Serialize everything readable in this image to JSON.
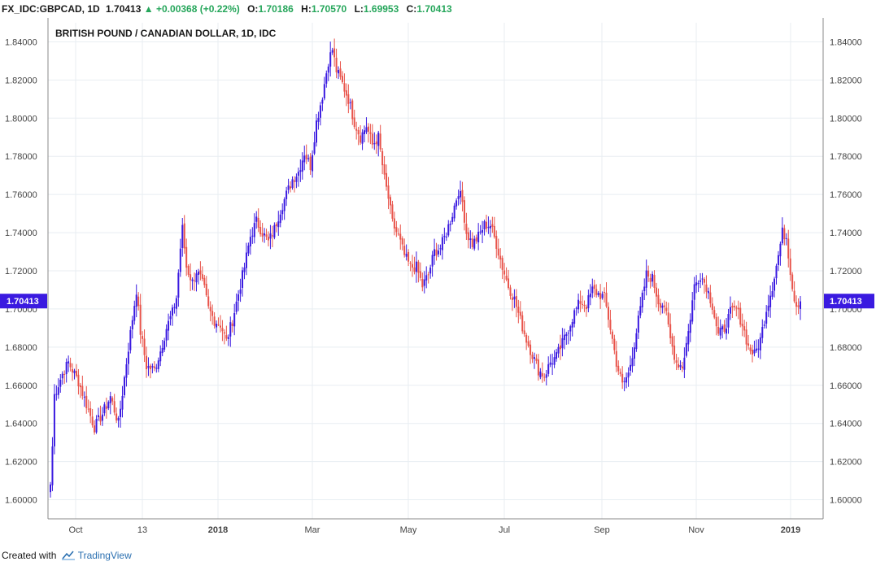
{
  "header": {
    "symbol": "FX_IDC:GBPCAD, 1D",
    "last": "1.70413",
    "arrow": "▲",
    "change": "+0.00368 (+0.22%)",
    "open_label": "O:",
    "open": "1.70186",
    "high_label": "H:",
    "high": "1.70570",
    "low_label": "L:",
    "low": "1.69953",
    "close_label": "C:",
    "close": "1.70413"
  },
  "footer": {
    "created_with": "Created with",
    "brand": "TradingView",
    "logo_icon": "tradingview-cloud-icon"
  },
  "colors": {
    "up": "#3a1ae0",
    "down": "#e8534a",
    "price_tag": "#3a1ae0",
    "grid": "#e8eef2",
    "axis": "#666666"
  },
  "chart_data": {
    "type": "candlestick",
    "title": "BRITISH POUND / CANADIAN DOLLAR, 1D, IDC",
    "ylim": [
      1.59,
      1.85
    ],
    "yticks": [
      "1.60000",
      "1.62000",
      "1.64000",
      "1.66000",
      "1.68000",
      "1.70000",
      "1.72000",
      "1.74000",
      "1.76000",
      "1.78000",
      "1.80000",
      "1.82000",
      "1.84000"
    ],
    "y_axis_both_sides": true,
    "current_price": "1.70413",
    "xticks": [
      {
        "label": "Oct",
        "bold": false
      },
      {
        "label": "13",
        "bold": false
      },
      {
        "label": "2018",
        "bold": true
      },
      {
        "label": "Mar",
        "bold": false
      },
      {
        "label": "May",
        "bold": false
      },
      {
        "label": "Jul",
        "bold": false
      },
      {
        "label": "Sep",
        "bold": false
      },
      {
        "label": "Nov",
        "bold": false
      },
      {
        "label": "2019",
        "bold": true
      }
    ],
    "grid": true,
    "close_anchors": [
      [
        0,
        1.608
      ],
      [
        1,
        1.628
      ],
      [
        2,
        1.655
      ],
      [
        6,
        1.666
      ],
      [
        9,
        1.672
      ],
      [
        14,
        1.662
      ],
      [
        18,
        1.65
      ],
      [
        22,
        1.638
      ],
      [
        26,
        1.645
      ],
      [
        30,
        1.654
      ],
      [
        34,
        1.64
      ],
      [
        38,
        1.672
      ],
      [
        41,
        1.695
      ],
      [
        43,
        1.71
      ],
      [
        45,
        1.688
      ],
      [
        48,
        1.67
      ],
      [
        52,
        1.668
      ],
      [
        55,
        1.678
      ],
      [
        58,
        1.69
      ],
      [
        61,
        1.698
      ],
      [
        63,
        1.706
      ],
      [
        65,
        1.732
      ],
      [
        66,
        1.742
      ],
      [
        68,
        1.722
      ],
      [
        71,
        1.714
      ],
      [
        73,
        1.72
      ],
      [
        75,
        1.716
      ],
      [
        77,
        1.71
      ],
      [
        79,
        1.7
      ],
      [
        82,
        1.694
      ],
      [
        85,
        1.692
      ],
      [
        88,
        1.683
      ],
      [
        91,
        1.694
      ],
      [
        94,
        1.708
      ],
      [
        97,
        1.722
      ],
      [
        100,
        1.738
      ],
      [
        103,
        1.746
      ],
      [
        106,
        1.74
      ],
      [
        109,
        1.735
      ],
      [
        112,
        1.742
      ],
      [
        115,
        1.752
      ],
      [
        118,
        1.76
      ],
      [
        121,
        1.768
      ],
      [
        124,
        1.772
      ],
      [
        127,
        1.782
      ],
      [
        130,
        1.775
      ],
      [
        133,
        1.798
      ],
      [
        136,
        1.812
      ],
      [
        139,
        1.83
      ],
      [
        141,
        1.836
      ],
      [
        143,
        1.825
      ],
      [
        146,
        1.818
      ],
      [
        149,
        1.81
      ],
      [
        152,
        1.798
      ],
      [
        155,
        1.79
      ],
      [
        158,
        1.796
      ],
      [
        161,
        1.786
      ],
      [
        164,
        1.79
      ],
      [
        167,
        1.768
      ],
      [
        169,
        1.758
      ],
      [
        171,
        1.745
      ],
      [
        174,
        1.738
      ],
      [
        177,
        1.728
      ],
      [
        180,
        1.722
      ],
      [
        183,
        1.722
      ],
      [
        186,
        1.712
      ],
      [
        189,
        1.718
      ],
      [
        192,
        1.73
      ],
      [
        195,
        1.732
      ],
      [
        198,
        1.74
      ],
      [
        201,
        1.75
      ],
      [
        204,
        1.762
      ],
      [
        206,
        1.756
      ],
      [
        208,
        1.74
      ],
      [
        211,
        1.734
      ],
      [
        214,
        1.738
      ],
      [
        217,
        1.744
      ],
      [
        220,
        1.744
      ],
      [
        223,
        1.734
      ],
      [
        226,
        1.722
      ],
      [
        229,
        1.712
      ],
      [
        232,
        1.705
      ],
      [
        235,
        1.694
      ],
      [
        238,
        1.684
      ],
      [
        241,
        1.676
      ],
      [
        244,
        1.668
      ],
      [
        247,
        1.665
      ],
      [
        250,
        1.672
      ],
      [
        253,
        1.675
      ],
      [
        256,
        1.682
      ],
      [
        259,
        1.69
      ],
      [
        262,
        1.698
      ],
      [
        265,
        1.704
      ],
      [
        268,
        1.702
      ],
      [
        271,
        1.71
      ],
      [
        274,
        1.708
      ],
      [
        277,
        1.706
      ],
      [
        280,
        1.69
      ],
      [
        283,
        1.672
      ],
      [
        286,
        1.66
      ],
      [
        289,
        1.666
      ],
      [
        292,
        1.682
      ],
      [
        295,
        1.7
      ],
      [
        298,
        1.718
      ],
      [
        301,
        1.716
      ],
      [
        304,
        1.704
      ],
      [
        307,
        1.702
      ],
      [
        310,
        1.684
      ],
      [
        313,
        1.672
      ],
      [
        316,
        1.67
      ],
      [
        319,
        1.688
      ],
      [
        322,
        1.712
      ],
      [
        325,
        1.718
      ],
      [
        328,
        1.712
      ],
      [
        331,
        1.702
      ],
      [
        334,
        1.686
      ],
      [
        337,
        1.69
      ],
      [
        340,
        1.698
      ],
      [
        343,
        1.7
      ],
      [
        346,
        1.692
      ],
      [
        349,
        1.68
      ],
      [
        352,
        1.676
      ],
      [
        355,
        1.684
      ],
      [
        358,
        1.7
      ],
      [
        361,
        1.712
      ],
      [
        364,
        1.728
      ],
      [
        366,
        1.74
      ],
      [
        368,
        1.738
      ],
      [
        370,
        1.72
      ],
      [
        372,
        1.705
      ],
      [
        374,
        1.702
      ],
      [
        375,
        1.704
      ]
    ]
  }
}
